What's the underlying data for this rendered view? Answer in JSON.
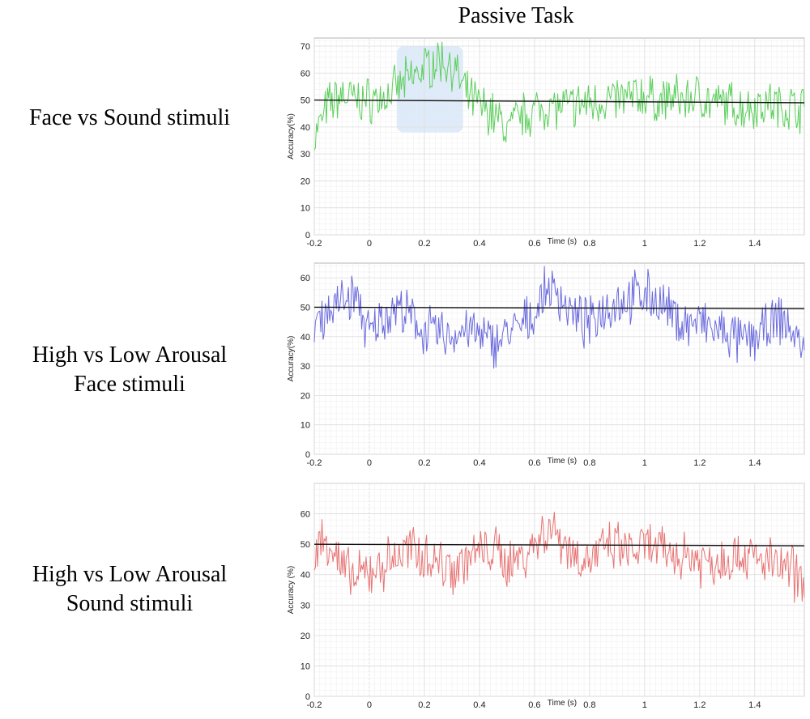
{
  "page": {
    "title": "Passive Task",
    "rows": [
      {
        "line1": "Face vs Sound stimuli",
        "line2": ""
      },
      {
        "line1": "High vs Low Arousal",
        "line2": "Face stimuli"
      },
      {
        "line1": "High vs Low Arousal",
        "line2": "Sound stimuli"
      }
    ]
  },
  "chart_data": [
    {
      "type": "line",
      "xlabel": "Time (s)",
      "ylabel": "Accuracy(%)",
      "xlim": [
        -0.2,
        1.58
      ],
      "ylim": [
        0,
        73
      ],
      "x_ticks": [
        "-0.2",
        "0",
        "0.2",
        "0.4",
        "0.6",
        "0.8",
        "1",
        "1.2",
        "1.4"
      ],
      "y_ticks": [
        "0",
        "10",
        "20",
        "30",
        "40",
        "50",
        "60",
        "70"
      ],
      "grid": true,
      "color": "#5ccf5c",
      "reference_line": {
        "y_start": 50,
        "y_end": 49
      },
      "highlight": {
        "x": [
          0.1,
          0.34
        ],
        "y": [
          38,
          70
        ],
        "color": "#dbe8f8"
      },
      "series_x": [
        -0.2,
        -0.15,
        -0.1,
        -0.05,
        0,
        0.05,
        0.1,
        0.15,
        0.2,
        0.25,
        0.3,
        0.35,
        0.4,
        0.45,
        0.5,
        0.55,
        0.6,
        0.65,
        0.7,
        0.75,
        0.8,
        0.85,
        0.9,
        0.95,
        1,
        1.05,
        1.1,
        1.15,
        1.2,
        1.25,
        1.3,
        1.35,
        1.4,
        1.45,
        1.5,
        1.55,
        1.58
      ],
      "series_y": [
        36,
        48,
        52,
        50,
        50,
        51,
        54,
        58,
        62,
        65,
        63,
        52,
        48,
        45,
        39,
        44,
        46,
        48,
        47,
        48,
        49,
        50,
        50,
        51,
        52,
        49,
        51,
        50,
        52,
        48,
        49,
        47,
        48,
        49,
        47,
        48,
        46
      ]
    },
    {
      "type": "line",
      "xlabel": "Time (s)",
      "ylabel": "Accuracy(%)",
      "xlim": [
        -0.2,
        1.58
      ],
      "ylim": [
        0,
        65
      ],
      "x_ticks": [
        "-0.2",
        "0",
        "0.2",
        "0.4",
        "0.6",
        "0.8",
        "1",
        "1.2",
        "1.4"
      ],
      "y_ticks": [
        "0",
        "10",
        "20",
        "30",
        "40",
        "50",
        "60"
      ],
      "grid": true,
      "color": "#6b6bdf",
      "reference_line": {
        "y_start": 50,
        "y_end": 49.5
      },
      "series_x": [
        -0.2,
        -0.15,
        -0.1,
        -0.05,
        0,
        0.05,
        0.1,
        0.15,
        0.2,
        0.25,
        0.3,
        0.35,
        0.4,
        0.45,
        0.5,
        0.55,
        0.6,
        0.65,
        0.7,
        0.75,
        0.8,
        0.85,
        0.9,
        0.95,
        1,
        1.05,
        1.1,
        1.15,
        1.2,
        1.25,
        1.3,
        1.35,
        1.4,
        1.45,
        1.5,
        1.55,
        1.58
      ],
      "series_y": [
        45,
        49,
        52,
        54,
        40,
        47,
        50,
        46,
        42,
        41,
        40,
        43,
        40,
        38,
        41,
        43,
        48,
        57,
        53,
        46,
        44,
        50,
        52,
        53,
        55,
        52,
        47,
        44,
        45,
        42,
        41,
        38,
        40,
        43,
        46,
        40,
        33
      ]
    },
    {
      "type": "line",
      "xlabel": "Time (s)",
      "ylabel": "Accuracy (%)",
      "xlim": [
        -0.2,
        1.58
      ],
      "ylim": [
        0,
        70
      ],
      "x_ticks": [
        "-0.2",
        "0",
        "0.2",
        "0.4",
        "0.6",
        "0.8",
        "1",
        "1.2",
        "1.4"
      ],
      "y_ticks": [
        "0",
        "10",
        "20",
        "30",
        "40",
        "50",
        "60"
      ],
      "grid": true,
      "color": "#e87474",
      "reference_line": {
        "y_start": 50,
        "y_end": 49.5
      },
      "series_x": [
        -0.2,
        -0.15,
        -0.1,
        -0.05,
        0,
        0.05,
        0.1,
        0.15,
        0.2,
        0.25,
        0.3,
        0.35,
        0.4,
        0.45,
        0.5,
        0.55,
        0.6,
        0.65,
        0.7,
        0.75,
        0.8,
        0.85,
        0.9,
        0.95,
        1,
        1.05,
        1.1,
        1.15,
        1.2,
        1.25,
        1.3,
        1.35,
        1.4,
        1.45,
        1.5,
        1.55,
        1.58
      ],
      "series_y": [
        48,
        52,
        42,
        38,
        41,
        43,
        46,
        48,
        47,
        44,
        42,
        45,
        47,
        48,
        44,
        46,
        50,
        56,
        52,
        46,
        45,
        48,
        49,
        47,
        49,
        48,
        46,
        47,
        45,
        44,
        46,
        47,
        45,
        44,
        42,
        40,
        36
      ]
    }
  ]
}
